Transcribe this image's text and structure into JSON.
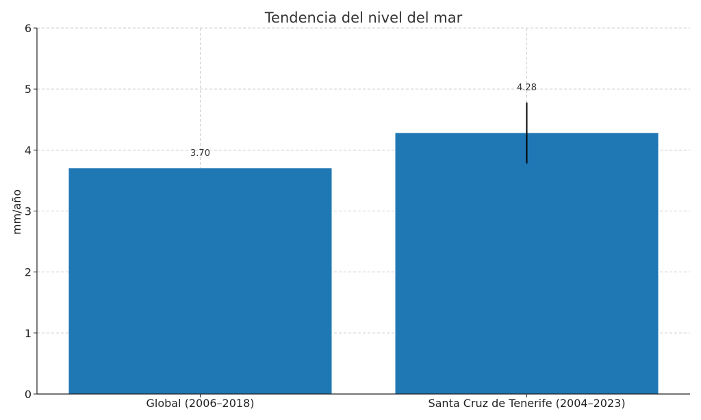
{
  "chart_data": {
    "type": "bar",
    "title": "Tendencia del nivel del mar",
    "xlabel": "",
    "ylabel": "mm/año",
    "ylim": [
      0,
      6
    ],
    "yticks": [
      "0",
      "1",
      "2",
      "3",
      "4",
      "5",
      "6"
    ],
    "categories": [
      "Global (2006–2018)",
      "Santa Cruz de Tenerife (2004–2023)"
    ],
    "values": [
      3.7,
      4.28
    ],
    "value_labels": [
      "3.70",
      "4.28"
    ],
    "error": [
      null,
      0.5
    ],
    "bar_color": "#1f77b4",
    "error_color": "#000000",
    "grid": true
  }
}
